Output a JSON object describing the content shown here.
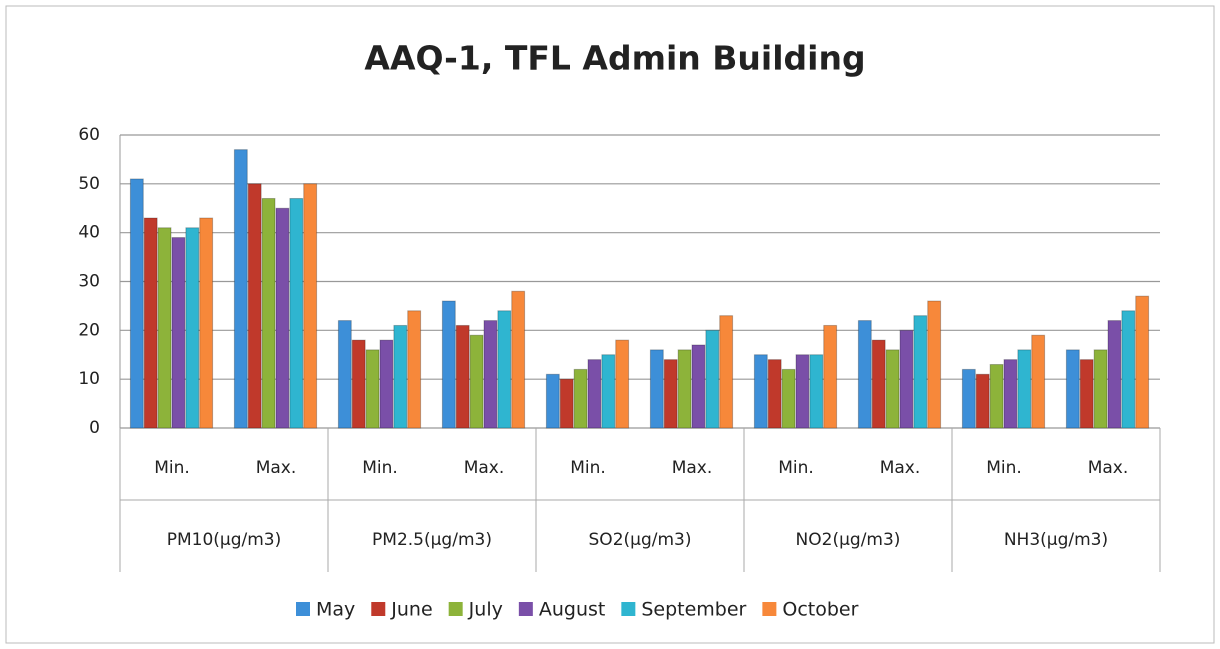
{
  "chart_data": {
    "type": "bar",
    "title": "AAQ-1, TFL Admin Building",
    "categories": [
      "Min.",
      "Max.",
      "Min.",
      "Max.",
      "Min.",
      "Max.",
      "Min.",
      "Max.",
      "Min.",
      "Max."
    ],
    "groups": [
      "PM10(µg/m3)",
      "PM2.5(µg/m3)",
      "SO2(µg/m3)",
      "NO2(µg/m3)",
      "NH3(µg/m3)"
    ],
    "series": [
      {
        "name": "May",
        "color": "#3d8fd8",
        "values": [
          51,
          57,
          22,
          26,
          11,
          16,
          15,
          22,
          12,
          16
        ]
      },
      {
        "name": "June",
        "color": "#c0392b",
        "values": [
          43,
          50,
          18,
          21,
          10,
          14,
          14,
          18,
          11,
          14
        ]
      },
      {
        "name": "July",
        "color": "#8db33a",
        "values": [
          41,
          47,
          16,
          19,
          12,
          16,
          12,
          16,
          13,
          16
        ]
      },
      {
        "name": "August",
        "color": "#7a4fa8",
        "values": [
          39,
          45,
          18,
          22,
          14,
          17,
          15,
          20,
          14,
          22
        ]
      },
      {
        "name": "September",
        "color": "#2fb5d0",
        "values": [
          41,
          47,
          21,
          24,
          15,
          20,
          15,
          23,
          16,
          24
        ]
      },
      {
        "name": "October",
        "color": "#f7883a",
        "values": [
          43,
          50,
          24,
          28,
          18,
          23,
          21,
          26,
          19,
          27
        ]
      }
    ],
    "ylim": [
      0,
      60
    ],
    "yticks": [
      0,
      10,
      20,
      30,
      40,
      50,
      60
    ],
    "grid": true,
    "legend": "bottom"
  }
}
